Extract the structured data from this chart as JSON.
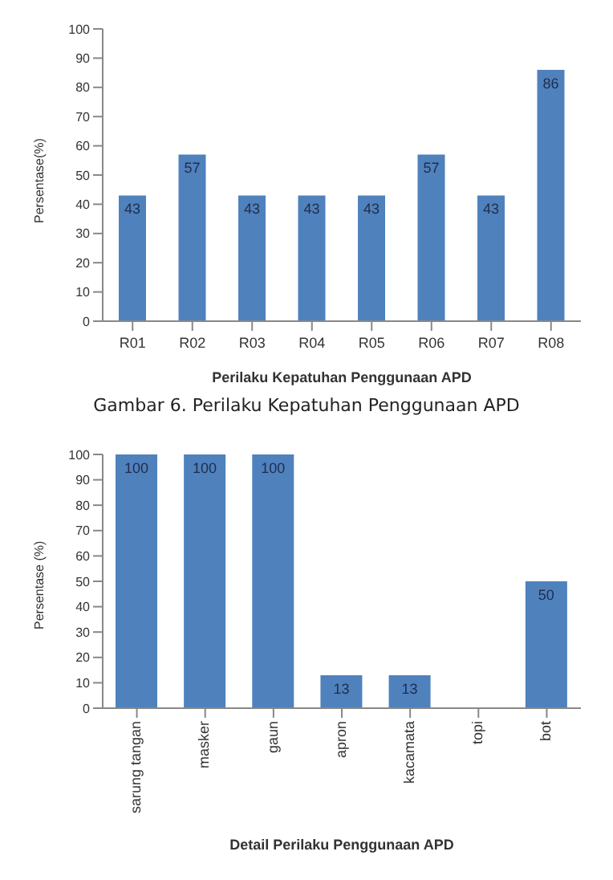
{
  "chart_data": [
    {
      "type": "bar",
      "categories": [
        "R01",
        "R02",
        "R03",
        "R04",
        "R05",
        "R06",
        "R07",
        "R08"
      ],
      "values": [
        43,
        57,
        43,
        43,
        43,
        57,
        43,
        86
      ],
      "color": "#4f81bd",
      "ylim": [
        0,
        100
      ],
      "yticks": [
        0,
        10,
        20,
        30,
        40,
        50,
        60,
        70,
        80,
        90,
        100
      ],
      "xlabel": "Perilaku Kepatuhan Penggunaan APD",
      "ylabel": "Persentase(%)",
      "data_labels": true,
      "grid": false,
      "legend": false,
      "annotations": [
        "Gambar 6. Perilaku Kepatuhan Penggunaan APD"
      ]
    },
    {
      "type": "bar",
      "categories": [
        "sarung tangan",
        "masker",
        "gaun",
        "apron",
        "kacamata",
        "topi",
        "bot"
      ],
      "values": [
        100,
        100,
        100,
        13,
        13,
        0,
        50
      ],
      "value_labels": [
        "100",
        "100",
        "100",
        "13",
        "13",
        null,
        "50"
      ],
      "color": "#4f81bd",
      "ylim": [
        0,
        100
      ],
      "yticks": [
        0,
        10,
        20,
        30,
        40,
        50,
        60,
        70,
        80,
        90,
        100
      ],
      "xlabel": "Detail Perilaku Penggunaan APD",
      "ylabel": "Persentase (%)",
      "grid": false,
      "legend": false
    }
  ]
}
